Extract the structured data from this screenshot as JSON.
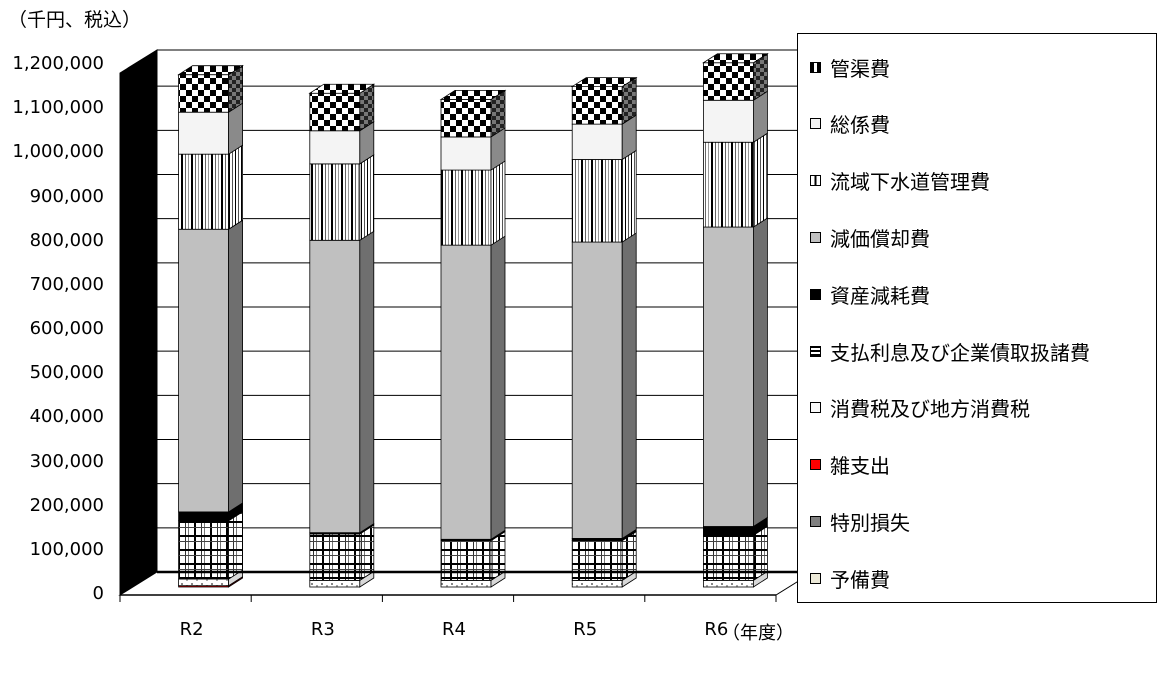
{
  "chart_data": {
    "type": "bar",
    "stacked": true,
    "three_d": true,
    "unit_label": "（千円、税込）",
    "x_unit_label": "（年度）",
    "categories": [
      "R2",
      "R3",
      "R4",
      "R5",
      "R6"
    ],
    "y_ticks": [
      "0",
      "100,000",
      "200,000",
      "300,000",
      "400,000",
      "500,000",
      "600,000",
      "700,000",
      "800,000",
      "900,000",
      "1,000,000",
      "1,100,000",
      "1,200,000"
    ],
    "ylim": [
      0,
      1200000
    ],
    "grid": true,
    "legend_position": "right",
    "series": [
      {
        "name": "予備費",
        "values": [
          0,
          0,
          0,
          0,
          0
        ],
        "color": "#ece9d8"
      },
      {
        "name": "特別損失",
        "values": [
          0,
          0,
          0,
          0,
          0
        ],
        "color": "#808080"
      },
      {
        "name": "雑支出",
        "values": [
          3000,
          0,
          0,
          0,
          0
        ],
        "color": "#ff0000"
      },
      {
        "name": "消費税及び地方消費税",
        "values": [
          15000,
          15000,
          15000,
          15000,
          15000
        ],
        "color": "#f0f0f0"
      },
      {
        "name": "支払利息及び企業債取扱諸費",
        "values": [
          132000,
          105000,
          90000,
          90000,
          102000
        ],
        "color": "#e4e4e4"
      },
      {
        "name": "資産減耗費",
        "values": [
          20000,
          3000,
          3000,
          5000,
          20000
        ],
        "color": "#000000"
      },
      {
        "name": "減価償却費",
        "values": [
          640000,
          662000,
          666000,
          671000,
          678000
        ],
        "color": "#c0c0c0"
      },
      {
        "name": "流域下水道管理費",
        "values": [
          170000,
          173000,
          170000,
          187000,
          192000
        ],
        "color": "#f4f4f4"
      },
      {
        "name": "総係費",
        "values": [
          95000,
          75000,
          75000,
          80000,
          95000
        ],
        "color": "#f4f4f4"
      },
      {
        "name": "管渠費",
        "values": [
          85000,
          85000,
          85000,
          85000,
          85000
        ],
        "color": "#808080"
      }
    ],
    "legend_order": [
      "管渠費",
      "総係費",
      "流域下水道管理費",
      "減価償却費",
      "資産減耗費",
      "支払利息及び企業債取扱諸費",
      "消費税及び地方消費税",
      "雑支出",
      "特別損失",
      "予備費"
    ]
  }
}
